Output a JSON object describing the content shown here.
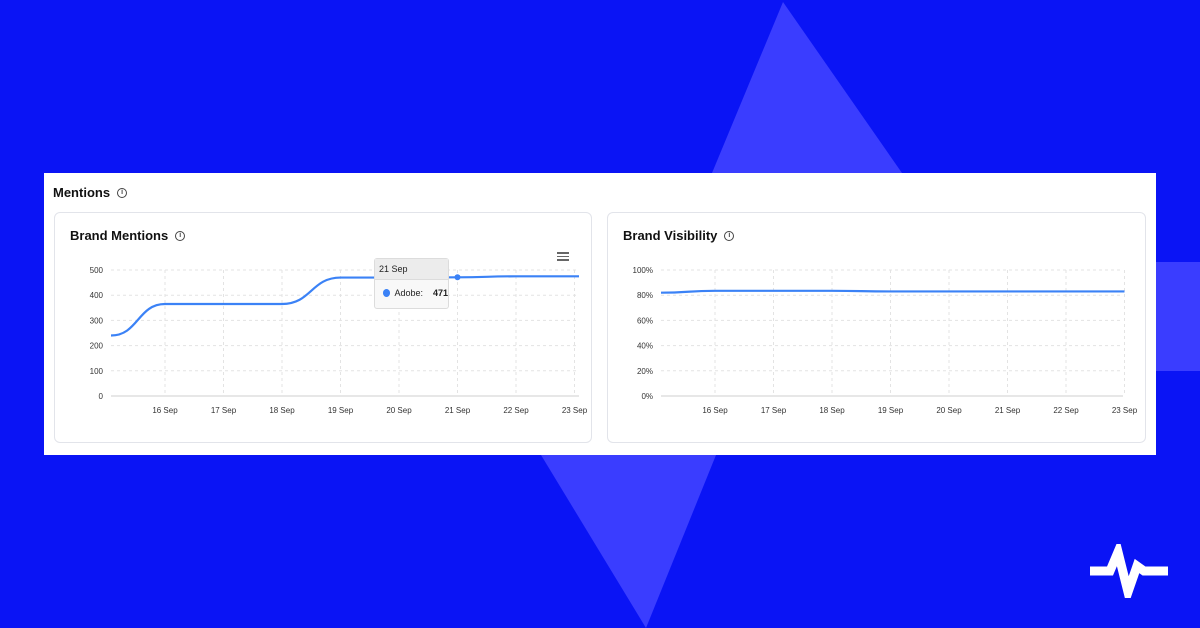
{
  "section": {
    "title": "Mentions",
    "info_icon": "info-icon"
  },
  "colors": {
    "background": "#0a14f5",
    "accent_shape": "#3a3dff",
    "series": "#3b82f6",
    "grid": "#e3e3e3"
  },
  "cards": {
    "brand_mentions": {
      "title": "Brand Mentions"
    },
    "brand_visibility": {
      "title": "Brand Visibility"
    }
  },
  "tooltip": {
    "date": "21 Sep",
    "series": "Adobe:",
    "value": "471"
  },
  "chart_data": [
    {
      "type": "line",
      "title": "Brand Mentions",
      "x": [
        "16 Sep",
        "17 Sep",
        "18 Sep",
        "19 Sep",
        "20 Sep",
        "21 Sep",
        "22 Sep",
        "23 Sep"
      ],
      "series": [
        {
          "name": "Adobe",
          "values": [
            365,
            365,
            365,
            470,
            470,
            471,
            475,
            475
          ]
        }
      ],
      "ylim": [
        0,
        500
      ],
      "yticks": [
        "0",
        "100",
        "200",
        "300",
        "400",
        "500"
      ],
      "start_value": 240,
      "grid": true
    },
    {
      "type": "line",
      "title": "Brand Visibility",
      "x": [
        "16 Sep",
        "17 Sep",
        "18 Sep",
        "19 Sep",
        "20 Sep",
        "21 Sep",
        "22 Sep",
        "23 Sep"
      ],
      "series": [
        {
          "values": [
            83.5,
            83.5,
            83.5,
            83,
            83,
            83,
            83,
            83
          ]
        }
      ],
      "ylim": [
        0,
        100
      ],
      "yticks": [
        "0%",
        "20%",
        "40%",
        "60%",
        "80%",
        "100%"
      ],
      "start_value": 82,
      "grid": true
    }
  ]
}
